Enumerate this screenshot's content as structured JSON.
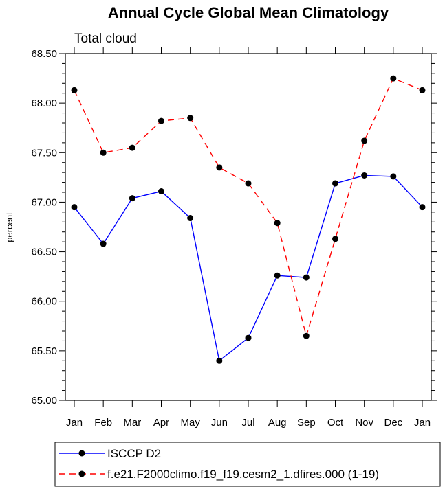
{
  "chart_data": {
    "type": "line",
    "title": "Annual Cycle Global Mean Climatology",
    "subtitle": "Total cloud",
    "ylabel": "percent",
    "xlabel": "",
    "categories": [
      "Jan",
      "Feb",
      "Mar",
      "Apr",
      "May",
      "Jun",
      "Jul",
      "Aug",
      "Sep",
      "Oct",
      "Nov",
      "Dec",
      "Jan"
    ],
    "ylim": [
      65.0,
      68.5
    ],
    "yticks": [
      "65.00",
      "65.50",
      "66.00",
      "66.50",
      "67.00",
      "67.50",
      "68.00",
      "68.50"
    ],
    "grid": false,
    "legend_position": "bottom",
    "series": [
      {
        "name": "ISCCP D2",
        "color": "#0000ff",
        "dash": "solid",
        "marker": "circle",
        "values": [
          66.95,
          66.58,
          67.04,
          67.11,
          66.84,
          65.4,
          65.63,
          66.26,
          66.24,
          67.19,
          67.27,
          67.26,
          66.95
        ]
      },
      {
        "name": "f.e21.F2000climo.f19_f19.cesm2_1.dfires.000 (1-19)",
        "color": "#ff0000",
        "dash": "dashed",
        "marker": "circle",
        "values": [
          68.13,
          67.5,
          67.55,
          67.82,
          67.85,
          67.35,
          67.19,
          66.79,
          65.65,
          66.63,
          67.62,
          68.25,
          68.13
        ]
      }
    ]
  }
}
